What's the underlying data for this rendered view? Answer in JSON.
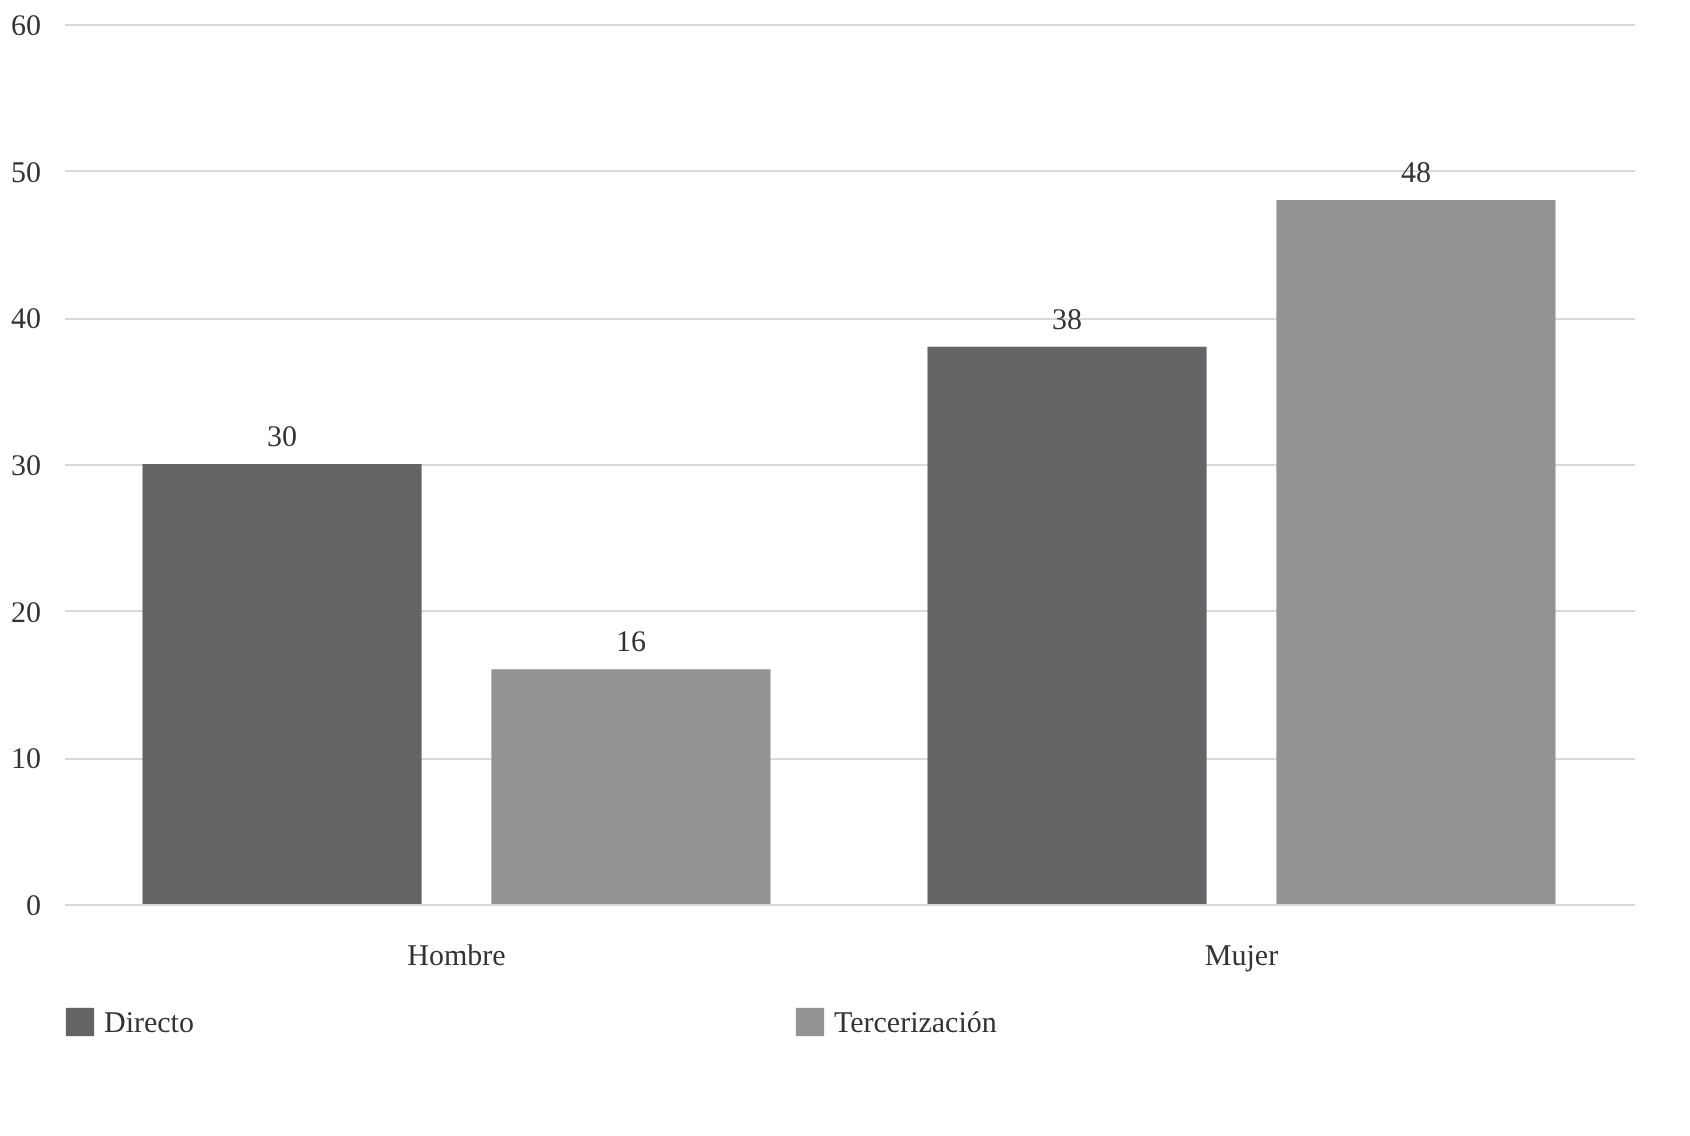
{
  "chart_data": {
    "type": "bar",
    "categories": [
      "Hombre",
      "Mujer"
    ],
    "series": [
      {
        "name": "Directo",
        "color": "#646466",
        "values": [
          30,
          38
        ]
      },
      {
        "name": "Tercerización",
        "color": "#939393",
        "values": [
          16,
          48
        ]
      }
    ],
    "ylim": [
      0,
      60
    ],
    "yticks": [
      0,
      10,
      20,
      30,
      40,
      50,
      60
    ],
    "grid": "y",
    "legend": "bottom",
    "data_labels": true
  }
}
